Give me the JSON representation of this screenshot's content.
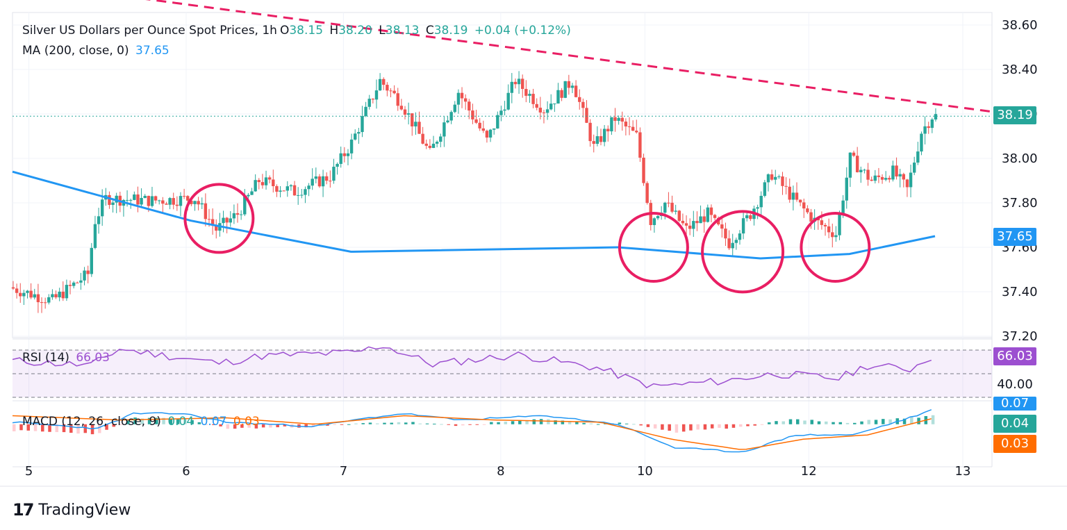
{
  "header": {
    "symbol_title": "Silver US Dollars per Ounce Spot Prices, 1h",
    "open_label": "O",
    "open_value": "38.15",
    "high_label": "H",
    "high_value": "38.20",
    "low_label": "L",
    "low_value": "38.13",
    "close_label": "C",
    "close_value": "38.19",
    "change": "+0.04 (+0.12%)"
  },
  "ma_legend": {
    "label": "MA (200, close, 0)",
    "value": "37.65"
  },
  "rsi_legend": {
    "label": "RSI (14)",
    "value": "66.03"
  },
  "macd_legend": {
    "label": "MACD (12, 26, close, 9)",
    "hist": "0.04",
    "macd": "0.07",
    "signal": "0.03"
  },
  "badges": {
    "last_price": "38.19",
    "ma": "37.65",
    "rsi": "66.03",
    "rsi_level": "40.00",
    "macd": "0.07",
    "hist": "0.04",
    "signal": "0.03"
  },
  "colors": {
    "up": "#26a69a",
    "down": "#ef5350",
    "ma": "#2196f3",
    "trend": "#e91e63",
    "rsi": "#9c4fd0",
    "macd": "#2196f3",
    "signal": "#ff6d00",
    "text": "#131722"
  },
  "brand": {
    "name": "TradingView"
  },
  "chart_data": {
    "type": "candlestick",
    "title": "Silver US Dollars per Ounce Spot Prices, 1h",
    "price_axis": {
      "min": 37.2,
      "max": 38.6,
      "ticks": [
        "38.60",
        "38.40",
        "38.20",
        "38.00",
        "37.80",
        "37.60",
        "37.40",
        "37.20"
      ]
    },
    "time_axis_labels": [
      "5",
      "6",
      "7",
      "8",
      "10",
      "12",
      "13"
    ],
    "last_price": 38.19,
    "price_path": [
      {
        "t": 0,
        "p": 37.42
      },
      {
        "t": 12,
        "p": 37.36
      },
      {
        "t": 22,
        "p": 37.48
      },
      {
        "t": 24,
        "p": 37.72
      },
      {
        "t": 27,
        "p": 37.82
      },
      {
        "t": 40,
        "p": 37.81
      },
      {
        "t": 52,
        "p": 37.82
      },
      {
        "t": 58,
        "p": 37.68
      },
      {
        "t": 64,
        "p": 37.75
      },
      {
        "t": 70,
        "p": 37.9
      },
      {
        "t": 80,
        "p": 37.85
      },
      {
        "t": 90,
        "p": 37.92
      },
      {
        "t": 96,
        "p": 38.07
      },
      {
        "t": 104,
        "p": 38.35
      },
      {
        "t": 110,
        "p": 38.25
      },
      {
        "t": 118,
        "p": 38.02
      },
      {
        "t": 126,
        "p": 38.3
      },
      {
        "t": 134,
        "p": 38.08
      },
      {
        "t": 142,
        "p": 38.35
      },
      {
        "t": 150,
        "p": 38.22
      },
      {
        "t": 158,
        "p": 38.35
      },
      {
        "t": 164,
        "p": 38.05
      },
      {
        "t": 170,
        "p": 38.18
      },
      {
        "t": 176,
        "p": 38.1
      },
      {
        "t": 180,
        "p": 37.72
      },
      {
        "t": 184,
        "p": 37.8
      },
      {
        "t": 190,
        "p": 37.68
      },
      {
        "t": 196,
        "p": 37.75
      },
      {
        "t": 202,
        "p": 37.62
      },
      {
        "t": 208,
        "p": 37.75
      },
      {
        "t": 214,
        "p": 37.93
      },
      {
        "t": 220,
        "p": 37.82
      },
      {
        "t": 226,
        "p": 37.72
      },
      {
        "t": 232,
        "p": 37.66
      },
      {
        "t": 236,
        "p": 38.0
      },
      {
        "t": 242,
        "p": 37.9
      },
      {
        "t": 248,
        "p": 37.94
      },
      {
        "t": 252,
        "p": 37.86
      },
      {
        "t": 256,
        "p": 38.12
      },
      {
        "t": 259,
        "p": 38.19
      }
    ],
    "ma200": {
      "name": "MA (200, close, 0)",
      "points": [
        {
          "t": 0,
          "p": 37.94
        },
        {
          "t": 50,
          "p": 37.72
        },
        {
          "t": 95,
          "p": 37.58
        },
        {
          "t": 170,
          "p": 37.6
        },
        {
          "t": 210,
          "p": 37.55
        },
        {
          "t": 235,
          "p": 37.57
        },
        {
          "t": 259,
          "p": 37.65
        }
      ]
    },
    "trendline": {
      "style": "dashed",
      "from": {
        "t": 36,
        "p": 38.72
      },
      "to": {
        "t": 275,
        "p": 38.21
      }
    },
    "support_circles_at_t": [
      58,
      180,
      205,
      231
    ],
    "rsi": {
      "name": "RSI (14)",
      "range": [
        30,
        80
      ],
      "levels": [
        70,
        50,
        30
      ],
      "band": [
        30,
        70
      ],
      "last": 66.03,
      "points": [
        {
          "t": 0,
          "p": 61
        },
        {
          "t": 22,
          "p": 57
        },
        {
          "t": 30,
          "p": 71
        },
        {
          "t": 58,
          "p": 59
        },
        {
          "t": 70,
          "p": 65
        },
        {
          "t": 96,
          "p": 68
        },
        {
          "t": 104,
          "p": 74
        },
        {
          "t": 118,
          "p": 58
        },
        {
          "t": 142,
          "p": 66
        },
        {
          "t": 164,
          "p": 55
        },
        {
          "t": 180,
          "p": 39
        },
        {
          "t": 200,
          "p": 44
        },
        {
          "t": 214,
          "p": 50
        },
        {
          "t": 232,
          "p": 46
        },
        {
          "t": 240,
          "p": 57
        },
        {
          "t": 252,
          "p": 54
        },
        {
          "t": 259,
          "p": 66
        }
      ]
    },
    "macd": {
      "name": "MACD (12, 26, close, 9)",
      "range": [
        -0.16,
        0.1
      ],
      "last_macd": 0.07,
      "last_signal": 0.03,
      "last_hist": 0.04,
      "macd_points": [
        {
          "t": 0,
          "p": 0.01
        },
        {
          "t": 24,
          "p": -0.02
        },
        {
          "t": 34,
          "p": 0.05
        },
        {
          "t": 48,
          "p": 0.05
        },
        {
          "t": 60,
          "p": 0.01
        },
        {
          "t": 85,
          "p": -0.01
        },
        {
          "t": 100,
          "p": 0.03
        },
        {
          "t": 110,
          "p": 0.05
        },
        {
          "t": 125,
          "p": 0.02
        },
        {
          "t": 150,
          "p": 0.04
        },
        {
          "t": 170,
          "p": 0.0
        },
        {
          "t": 186,
          "p": -0.11
        },
        {
          "t": 205,
          "p": -0.13
        },
        {
          "t": 220,
          "p": -0.05
        },
        {
          "t": 236,
          "p": -0.05
        },
        {
          "t": 250,
          "p": 0.02
        },
        {
          "t": 259,
          "p": 0.07
        }
      ],
      "signal_points": [
        {
          "t": 0,
          "p": 0.04
        },
        {
          "t": 30,
          "p": 0.02
        },
        {
          "t": 60,
          "p": 0.03
        },
        {
          "t": 85,
          "p": 0.0
        },
        {
          "t": 110,
          "p": 0.04
        },
        {
          "t": 135,
          "p": 0.02
        },
        {
          "t": 165,
          "p": 0.01
        },
        {
          "t": 185,
          "p": -0.07
        },
        {
          "t": 205,
          "p": -0.12
        },
        {
          "t": 222,
          "p": -0.07
        },
        {
          "t": 240,
          "p": -0.05
        },
        {
          "t": 259,
          "p": 0.03
        }
      ]
    }
  }
}
